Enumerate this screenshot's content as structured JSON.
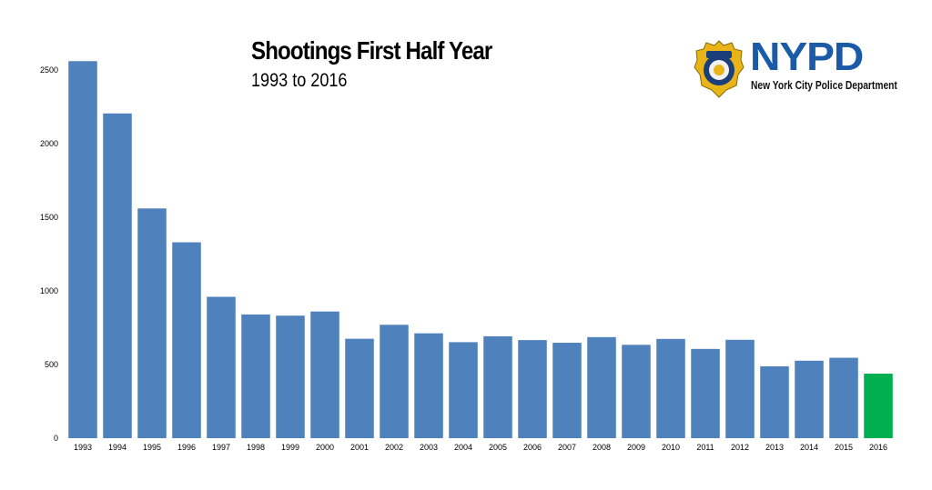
{
  "chart_data": {
    "type": "bar",
    "title": "Shootings First Half Year",
    "subtitle": "1993 to 2016",
    "xlabel": "",
    "ylabel": "",
    "ylim": [
      0,
      2500
    ],
    "yticks": [
      0,
      500,
      1000,
      1500,
      2000,
      2500
    ],
    "grid": false,
    "categories": [
      "1993",
      "1994",
      "1995",
      "1996",
      "1997",
      "1998",
      "1999",
      "2000",
      "2001",
      "2002",
      "2003",
      "2004",
      "2005",
      "2006",
      "2007",
      "2008",
      "2009",
      "2010",
      "2011",
      "2012",
      "2013",
      "2014",
      "2015",
      "2016"
    ],
    "values": [
      2560,
      2205,
      1560,
      1330,
      960,
      840,
      832,
      860,
      675,
      770,
      712,
      652,
      692,
      666,
      648,
      686,
      634,
      674,
      606,
      668,
      488,
      526,
      546,
      438
    ],
    "colors": {
      "default": "#4f81bd",
      "highlight": "#00b050"
    },
    "highlight_category": "2016"
  },
  "logo": {
    "badge_icon": "nypd-badge-icon",
    "wordmark": "NYPD",
    "caption": "New York City Police Department"
  }
}
